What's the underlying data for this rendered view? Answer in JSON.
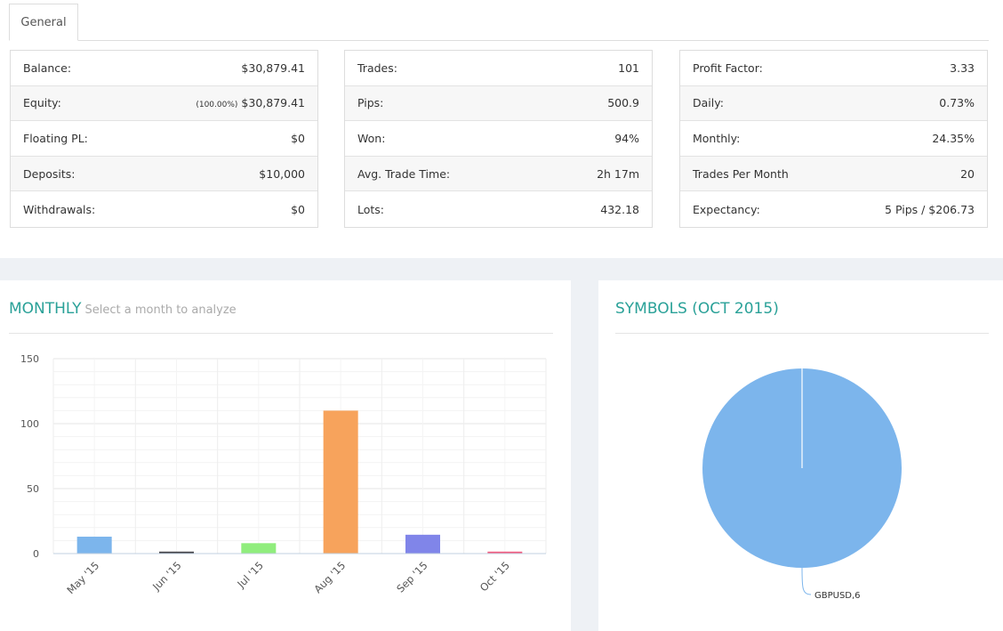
{
  "tabs": [
    {
      "label": "General"
    }
  ],
  "stats": {
    "col1": [
      {
        "label": "Balance:",
        "value": "$30,879.41"
      },
      {
        "label": "Equity:",
        "prefix": "(100.00%)",
        "value": "$30,879.41"
      },
      {
        "label": "Floating PL:",
        "value": "$0"
      },
      {
        "label": "Deposits:",
        "value": "$10,000"
      },
      {
        "label": "Withdrawals:",
        "value": "$0"
      }
    ],
    "col2": [
      {
        "label": "Trades:",
        "value": "101"
      },
      {
        "label": "Pips:",
        "value": "500.9"
      },
      {
        "label": "Won:",
        "value": "94%"
      },
      {
        "label": "Avg. Trade Time:",
        "value": "2h 17m"
      },
      {
        "label": "Lots:",
        "value": "432.18"
      }
    ],
    "col3": [
      {
        "label": "Profit Factor:",
        "value": "3.33"
      },
      {
        "label": "Daily:",
        "value": "0.73%"
      },
      {
        "label": "Monthly:",
        "value": "24.35%"
      },
      {
        "label": "Trades Per Month",
        "value": "20"
      },
      {
        "label": "Expectancy:",
        "value": "5 Pips / $206.73"
      }
    ]
  },
  "monthly": {
    "title": "MONTHLY",
    "subtitle": "Select a month to analyze"
  },
  "symbols": {
    "title": "SYMBOLS (OCT 2015)"
  },
  "chart_data": [
    {
      "type": "bar",
      "categories": [
        "May '15",
        "Jun '15",
        "Jul '15",
        "Aug '15",
        "Sep '15",
        "Oct '15"
      ],
      "values": [
        13,
        1.5,
        8,
        110,
        14.5,
        1.5
      ],
      "colors": [
        "#7cb5ec",
        "#434348",
        "#90ed7d",
        "#f7a35c",
        "#8085e9",
        "#f15c80"
      ],
      "ylim": [
        0,
        150
      ],
      "yticks": [
        0,
        50,
        100,
        150
      ],
      "grid": true
    },
    {
      "type": "pie",
      "slices": [
        {
          "label": "GBPUSD",
          "value": 6
        }
      ],
      "data_label": "GBPUSD,6",
      "colors": [
        "#7cb5ec"
      ]
    }
  ]
}
